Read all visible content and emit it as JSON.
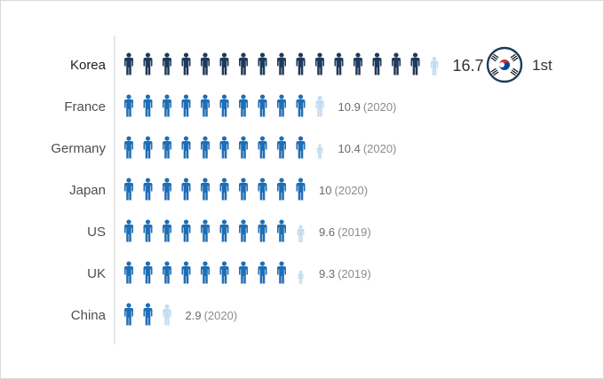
{
  "colors": {
    "highlight_full": "#1e3a5a",
    "full": "#1f6eb5",
    "partial": "#c3dcef",
    "axis": "#cccccc"
  },
  "icon": "person-icon",
  "rank_badge": {
    "flag": "south-korea-flag-icon",
    "label": "1st"
  },
  "chart_data": {
    "type": "pictograph",
    "unit_per_icon": 1,
    "highlight": "Korea",
    "rows": [
      {
        "country": "Korea",
        "value": 16.7,
        "year": ""
      },
      {
        "country": "France",
        "value": 10.9,
        "year": "(2020)"
      },
      {
        "country": "Germany",
        "value": 10.4,
        "year": "(2020)"
      },
      {
        "country": "Japan",
        "value": 10,
        "year": "(2020)"
      },
      {
        "country": "US",
        "value": 9.6,
        "year": "(2019)"
      },
      {
        "country": "UK",
        "value": 9.3,
        "year": "(2019)"
      },
      {
        "country": "China",
        "value": 2.9,
        "year": "(2020)"
      }
    ]
  }
}
